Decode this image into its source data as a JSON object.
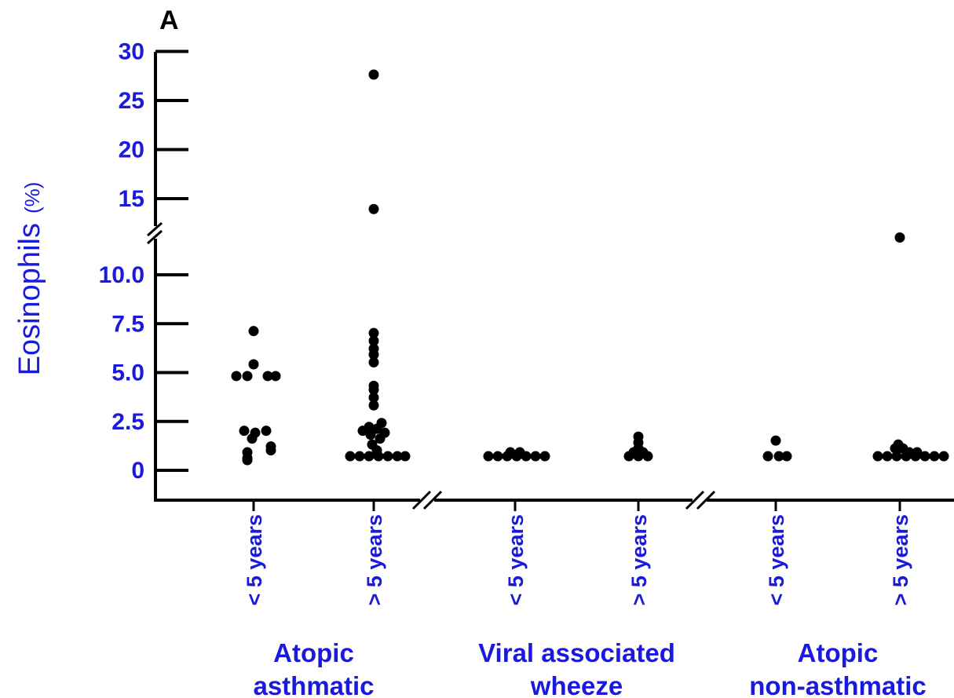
{
  "panel_label": "A",
  "chart_data": {
    "type": "scatter",
    "ylabel": "Eosinophils",
    "ylabel_unit": "(%)",
    "y_axis_break": true,
    "y_segments": [
      {
        "range": [
          0,
          10
        ],
        "ticks": [
          {
            "v": 0,
            "label": "0"
          },
          {
            "v": 2.5,
            "label": "2.5"
          },
          {
            "v": 5,
            "label": "5.0"
          },
          {
            "v": 7.5,
            "label": "7.5"
          },
          {
            "v": 10,
            "label": "10.0"
          }
        ]
      },
      {
        "range": [
          15,
          30
        ],
        "ticks": [
          {
            "v": 15,
            "label": "15"
          },
          {
            "v": 20,
            "label": "20"
          },
          {
            "v": 25,
            "label": "25"
          },
          {
            "v": 30,
            "label": "30"
          }
        ]
      }
    ],
    "categories": [
      "< 5 years",
      "> 5 years",
      "< 5 years",
      "> 5 years",
      "< 5 years",
      "> 5 years"
    ],
    "groups": [
      {
        "label_lines": [
          "Atopic",
          "asthmatic"
        ],
        "categories": [
          0,
          1
        ]
      },
      {
        "label_lines": [
          "Viral associated",
          "wheeze"
        ],
        "categories": [
          2,
          3
        ]
      },
      {
        "label_lines": [
          "Atopic",
          "non-asthmatic"
        ],
        "categories": [
          4,
          5
        ]
      }
    ],
    "series": [
      {
        "category": 0,
        "points": [
          {
            "y": 6.8,
            "dx": 0
          },
          {
            "y": 5.1,
            "dx": 0
          },
          {
            "y": 4.5,
            "dx": -22
          },
          {
            "y": 4.5,
            "dx": -8
          },
          {
            "y": 4.5,
            "dx": 18
          },
          {
            "y": 4.5,
            "dx": 28
          },
          {
            "y": 1.7,
            "dx": -12
          },
          {
            "y": 1.6,
            "dx": 2
          },
          {
            "y": 1.7,
            "dx": 16
          },
          {
            "y": 1.3,
            "dx": -2
          },
          {
            "y": 0.9,
            "dx": 22
          },
          {
            "y": 0.7,
            "dx": 22
          },
          {
            "y": 0.6,
            "dx": -8
          },
          {
            "y": 0.3,
            "dx": -8
          },
          {
            "y": 0.2,
            "dx": -8
          }
        ]
      },
      {
        "category": 1,
        "points": [
          {
            "y": 27.0,
            "dx": 0
          },
          {
            "y": 13.3,
            "dx": 0
          },
          {
            "y": 6.7,
            "dx": 0
          },
          {
            "y": 6.3,
            "dx": 0
          },
          {
            "y": 5.9,
            "dx": 0
          },
          {
            "y": 5.6,
            "dx": 0
          },
          {
            "y": 5.2,
            "dx": 0
          },
          {
            "y": 4.0,
            "dx": 0
          },
          {
            "y": 3.8,
            "dx": 0
          },
          {
            "y": 3.4,
            "dx": 0
          },
          {
            "y": 3.0,
            "dx": 0
          },
          {
            "y": 2.1,
            "dx": 10
          },
          {
            "y": 1.9,
            "dx": -6
          },
          {
            "y": 1.8,
            "dx": 4
          },
          {
            "y": 1.7,
            "dx": -14
          },
          {
            "y": 1.6,
            "dx": 14
          },
          {
            "y": 1.5,
            "dx": -4
          },
          {
            "y": 1.3,
            "dx": 8
          },
          {
            "y": 1.0,
            "dx": -2
          },
          {
            "y": 0.7,
            "dx": 4
          },
          {
            "y": 0.4,
            "dx": -30
          },
          {
            "y": 0.4,
            "dx": -18
          },
          {
            "y": 0.4,
            "dx": -6
          },
          {
            "y": 0.4,
            "dx": 6
          },
          {
            "y": 0.4,
            "dx": 18
          },
          {
            "y": 0.4,
            "dx": 30
          },
          {
            "y": 0.4,
            "dx": 40
          }
        ]
      },
      {
        "category": 2,
        "points": [
          {
            "y": 0.6,
            "dx": -6
          },
          {
            "y": 0.6,
            "dx": 6
          },
          {
            "y": 0.4,
            "dx": -34
          },
          {
            "y": 0.4,
            "dx": -22
          },
          {
            "y": 0.4,
            "dx": -10
          },
          {
            "y": 0.4,
            "dx": 2
          },
          {
            "y": 0.4,
            "dx": 14
          },
          {
            "y": 0.4,
            "dx": 26
          },
          {
            "y": 0.4,
            "dx": 38
          }
        ]
      },
      {
        "category": 3,
        "points": [
          {
            "y": 1.4,
            "dx": 0
          },
          {
            "y": 1.1,
            "dx": 0
          },
          {
            "y": 0.8,
            "dx": 0
          },
          {
            "y": 0.6,
            "dx": -6
          },
          {
            "y": 0.6,
            "dx": 6
          },
          {
            "y": 0.4,
            "dx": -12
          },
          {
            "y": 0.4,
            "dx": 0
          },
          {
            "y": 0.4,
            "dx": 12
          }
        ]
      },
      {
        "category": 4,
        "points": [
          {
            "y": 1.2,
            "dx": 0
          },
          {
            "y": 0.4,
            "dx": -10
          },
          {
            "y": 0.4,
            "dx": 4
          },
          {
            "y": 0.4,
            "dx": 14
          }
        ]
      },
      {
        "category": 5,
        "points": [
          {
            "y": 10.4,
            "dx": 0
          },
          {
            "y": 1.0,
            "dx": -2
          },
          {
            "y": 0.8,
            "dx": -6
          },
          {
            "y": 0.8,
            "dx": 4
          },
          {
            "y": 0.6,
            "dx": 12
          },
          {
            "y": 0.6,
            "dx": 22
          },
          {
            "y": 0.4,
            "dx": -28
          },
          {
            "y": 0.4,
            "dx": -16
          },
          {
            "y": 0.4,
            "dx": -4
          },
          {
            "y": 0.4,
            "dx": 8
          },
          {
            "y": 0.4,
            "dx": 20
          },
          {
            "y": 0.4,
            "dx": 32
          },
          {
            "y": 0.4,
            "dx": 44
          },
          {
            "y": 0.4,
            "dx": 56
          }
        ]
      }
    ]
  }
}
